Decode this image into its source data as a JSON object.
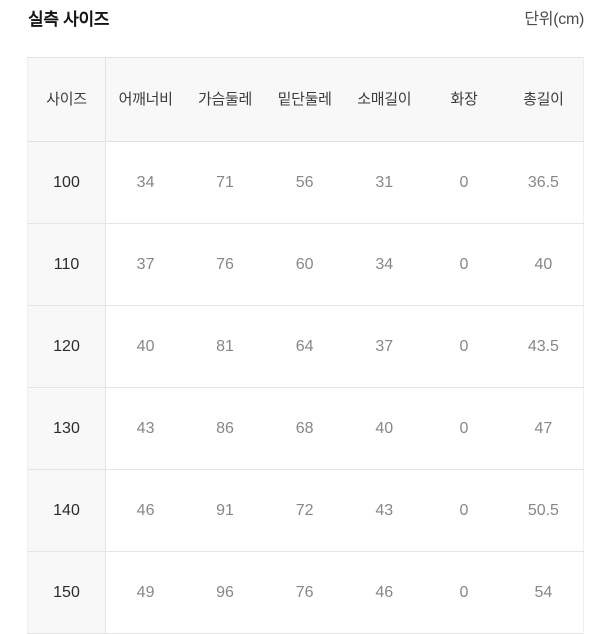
{
  "header": {
    "title": "실측 사이즈",
    "unit": "단위(cm)"
  },
  "table": {
    "columns": [
      "사이즈",
      "어깨너비",
      "가슴둘레",
      "밑단둘레",
      "소매길이",
      "화장",
      "총길이"
    ],
    "rows": [
      {
        "size": "100",
        "values": [
          "34",
          "71",
          "56",
          "31",
          "0",
          "36.5"
        ]
      },
      {
        "size": "110",
        "values": [
          "37",
          "76",
          "60",
          "34",
          "0",
          "40"
        ]
      },
      {
        "size": "120",
        "values": [
          "40",
          "81",
          "64",
          "37",
          "0",
          "43.5"
        ]
      },
      {
        "size": "130",
        "values": [
          "43",
          "86",
          "68",
          "40",
          "0",
          "47"
        ]
      },
      {
        "size": "140",
        "values": [
          "46",
          "91",
          "72",
          "43",
          "0",
          "50.5"
        ]
      },
      {
        "size": "150",
        "values": [
          "49",
          "96",
          "76",
          "46",
          "0",
          "54"
        ]
      }
    ]
  },
  "colors": {
    "header_and_size_column_bg": "#f8f8f8",
    "row_border": "#e5e5e5",
    "header_border": "#e2e2e2",
    "title_text": "#141414",
    "header_text": "#3c3c3c",
    "size_text": "#2b2b2b",
    "value_text": "#878787"
  }
}
